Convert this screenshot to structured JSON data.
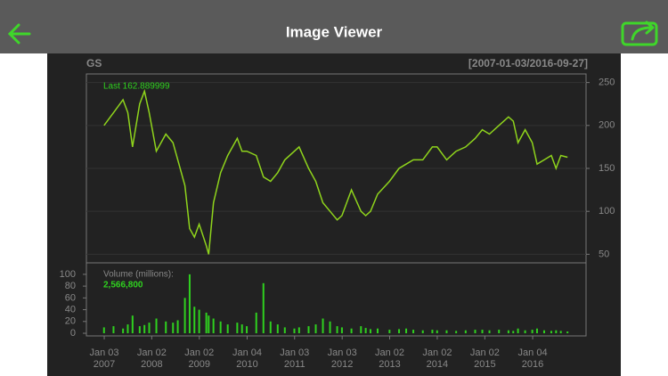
{
  "header": {
    "title": "Image Viewer"
  },
  "chart_data": [
    {
      "type": "line",
      "title": "GS",
      "subtitle": "[2007-01-03/2016-09-27]",
      "annotation": "Last 162.889999",
      "color": "#8fd41c",
      "x": [
        2007.0,
        2007.2,
        2007.4,
        2007.5,
        2007.6,
        2007.75,
        2007.85,
        2007.95,
        2008.1,
        2008.3,
        2008.45,
        2008.55,
        2008.7,
        2008.8,
        2008.9,
        2009.0,
        2009.15,
        2009.2,
        2009.3,
        2009.45,
        2009.6,
        2009.8,
        2009.9,
        2010.0,
        2010.2,
        2010.35,
        2010.5,
        2010.65,
        2010.8,
        2011.0,
        2011.1,
        2011.3,
        2011.45,
        2011.6,
        2011.75,
        2011.9,
        2012.0,
        2012.2,
        2012.4,
        2012.5,
        2012.6,
        2012.75,
        2013.0,
        2013.2,
        2013.35,
        2013.5,
        2013.7,
        2013.9,
        2014.0,
        2014.2,
        2014.4,
        2014.6,
        2014.8,
        2014.95,
        2015.1,
        2015.3,
        2015.5,
        2015.6,
        2015.7,
        2015.85,
        2016.0,
        2016.1,
        2016.25,
        2016.4,
        2016.5,
        2016.6,
        2016.74
      ],
      "values": [
        200,
        215,
        230,
        215,
        175,
        225,
        240,
        215,
        170,
        190,
        180,
        160,
        130,
        80,
        70,
        85,
        60,
        50,
        110,
        145,
        165,
        185,
        170,
        170,
        165,
        140,
        135,
        145,
        160,
        170,
        175,
        150,
        135,
        110,
        100,
        90,
        95,
        125,
        100,
        95,
        100,
        120,
        135,
        150,
        155,
        160,
        160,
        175,
        175,
        160,
        170,
        175,
        185,
        195,
        190,
        200,
        210,
        205,
        180,
        195,
        180,
        155,
        160,
        165,
        150,
        165,
        163
      ],
      "xlim": [
        2006.63,
        2017.13
      ],
      "ylim": [
        40,
        260
      ],
      "yticks": [
        50,
        100,
        150,
        200,
        250
      ],
      "grid": true
    },
    {
      "type": "bar",
      "title": "Volume (millions):",
      "annotation": "2,566,800",
      "color": "#2fd11f",
      "x": [
        2007.0,
        2007.2,
        2007.4,
        2007.5,
        2007.6,
        2007.75,
        2007.85,
        2007.95,
        2008.1,
        2008.3,
        2008.45,
        2008.55,
        2008.7,
        2008.8,
        2008.9,
        2009.0,
        2009.15,
        2009.2,
        2009.3,
        2009.45,
        2009.6,
        2009.8,
        2009.9,
        2010.0,
        2010.2,
        2010.35,
        2010.5,
        2010.65,
        2010.8,
        2011.0,
        2011.1,
        2011.3,
        2011.45,
        2011.6,
        2011.75,
        2011.9,
        2012.0,
        2012.2,
        2012.4,
        2012.5,
        2012.6,
        2012.75,
        2013.0,
        2013.2,
        2013.35,
        2013.5,
        2013.7,
        2013.9,
        2014.0,
        2014.2,
        2014.4,
        2014.6,
        2014.8,
        2014.95,
        2015.1,
        2015.3,
        2015.5,
        2015.6,
        2015.7,
        2015.85,
        2016.0,
        2016.1,
        2016.25,
        2016.4,
        2016.5,
        2016.6,
        2016.74
      ],
      "values": [
        10,
        12,
        8,
        15,
        30,
        12,
        14,
        18,
        25,
        20,
        18,
        22,
        60,
        100,
        45,
        40,
        35,
        30,
        25,
        20,
        15,
        18,
        15,
        12,
        35,
        85,
        20,
        15,
        10,
        8,
        10,
        12,
        15,
        25,
        20,
        12,
        10,
        8,
        12,
        9,
        7,
        8,
        6,
        7,
        8,
        6,
        5,
        6,
        5,
        5,
        4,
        5,
        6,
        6,
        5,
        6,
        5,
        4,
        8,
        5,
        6,
        8,
        5,
        4,
        5,
        4,
        3
      ],
      "xlim": [
        2006.63,
        2017.13
      ],
      "ylim": [
        -4.5,
        119.5
      ],
      "yticks": [
        0,
        20,
        40,
        60,
        80,
        100
      ],
      "xticks": [
        {
          "value": 2007.005,
          "label": "Jan 03"
        },
        {
          "value": 2008.003,
          "label": "Jan 02"
        },
        {
          "value": 2009.003,
          "label": "Jan 02"
        },
        {
          "value": 2010.008,
          "label": "Jan 04"
        },
        {
          "value": 2011.005,
          "label": "Jan 03"
        },
        {
          "value": 2012.005,
          "label": "Jan 03"
        },
        {
          "value": 2013.003,
          "label": "Jan 02"
        },
        {
          "value": 2014.003,
          "label": "Jan 02"
        },
        {
          "value": 2015.003,
          "label": "Jan 02"
        },
        {
          "value": 2016.008,
          "label": "Jan 04"
        }
      ],
      "xtick_years": [
        "2007",
        "2008",
        "2009",
        "2010",
        "2011",
        "2012",
        "2013",
        "2014",
        "2015",
        "2016"
      ]
    }
  ]
}
